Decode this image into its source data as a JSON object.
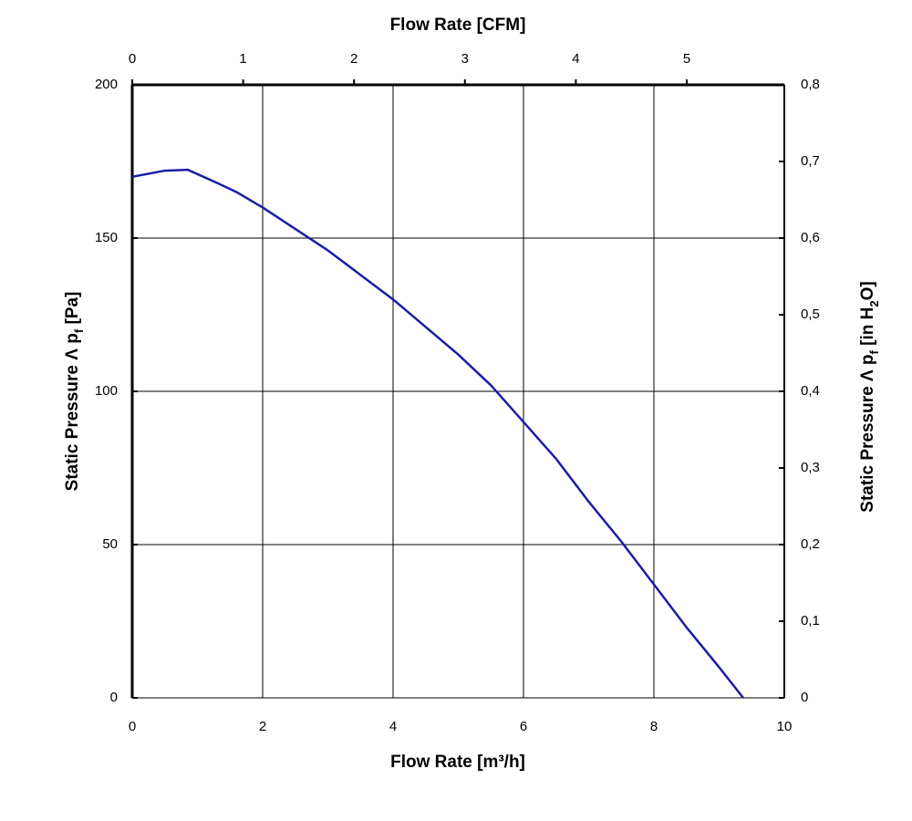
{
  "chart_data": {
    "type": "line",
    "x_label": "Flow Rate [m³/h]",
    "x2_label": "Flow Rate [CFM]",
    "y_label": [
      "Static Pressure Λ p",
      "f",
      " [Pa]"
    ],
    "y2_label": [
      "Static Pressure Λ p",
      "f",
      " [in H",
      "2",
      "O]"
    ],
    "xlim": [
      0,
      10
    ],
    "xticks": [
      0,
      2,
      4,
      6,
      8,
      10
    ],
    "x2lim": [
      0,
      5.88
    ],
    "x2ticks": [
      0,
      1,
      2,
      3,
      4,
      5
    ],
    "ylim": [
      0,
      200
    ],
    "yticks": [
      0,
      50,
      100,
      150,
      200
    ],
    "y2lim": [
      0,
      0.8
    ],
    "y2ticks": [
      0,
      {
        "value": 0.1,
        "label": "0,1"
      },
      {
        "value": 0.2,
        "label": "0,2"
      },
      {
        "value": 0.3,
        "label": "0,3"
      },
      {
        "value": 0.4,
        "label": "0,4"
      },
      {
        "value": 0.5,
        "label": "0,5"
      },
      {
        "value": 0.6,
        "label": "0,6"
      },
      {
        "value": 0.7,
        "label": "0,7"
      },
      {
        "value": 0.8,
        "label": "0,8"
      }
    ],
    "grid": true,
    "series": [
      {
        "color": "#1c1ca6",
        "x": [
          0,
          0.5,
          0.85,
          1.3,
          1.6,
          2,
          2.5,
          3,
          3.5,
          4,
          4.5,
          5,
          5.5,
          6,
          6.5,
          7,
          7.5,
          8,
          8.5,
          9,
          9.37
        ],
        "values": [
          170,
          172,
          172.3,
          168,
          165,
          160,
          153,
          146,
          138,
          130,
          121,
          112,
          102,
          90,
          78,
          64,
          51,
          37,
          23,
          10,
          0
        ]
      }
    ]
  }
}
